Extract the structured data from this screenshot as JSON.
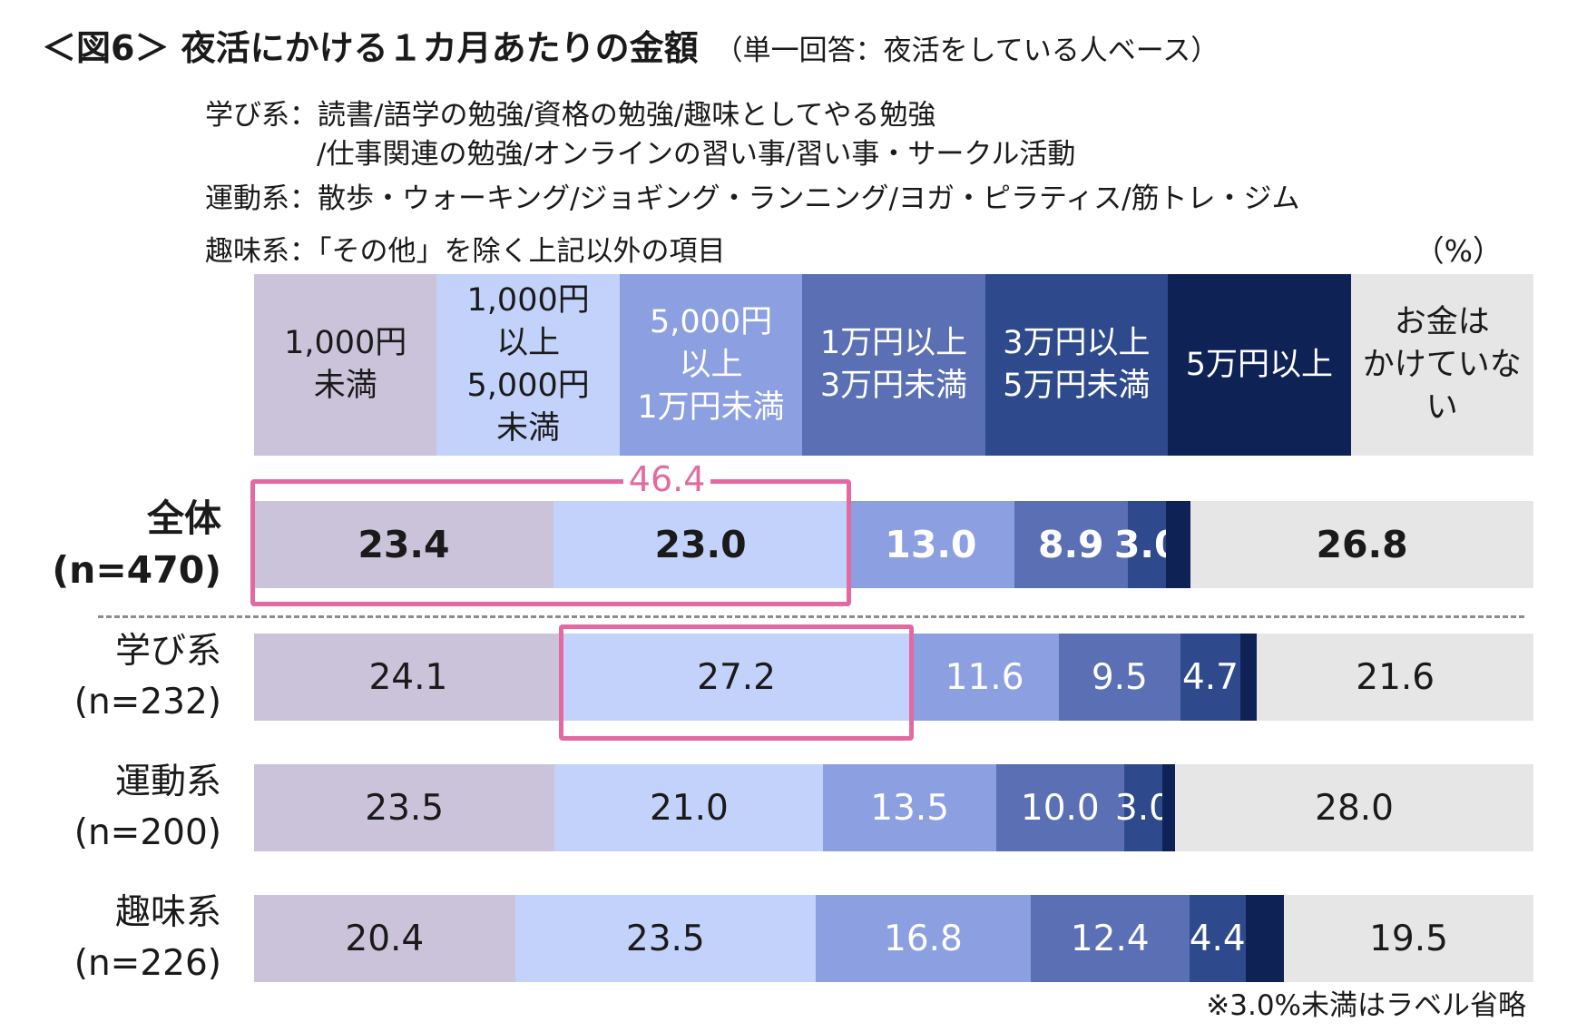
{
  "header": {
    "title": "＜図6＞ 夜活にかける１カ月あたりの金額",
    "subtitle": "（単一回答：夜活をしている人ベース）"
  },
  "definitions": [
    "学び系：読書/語学の勉強/資格の勉強/趣味としてやる勉強",
    "/仕事関連の勉強/オンラインの習い事/習い事・サークル活動",
    "運動系：散歩・ウォーキング/ジョギング・ランニング/ヨガ・ピラティス/筋トレ・ジム",
    "趣味系：「その他」を除く上記以外の項目"
  ],
  "unit": "（%）",
  "note": "※3.0%未満はラベル省略",
  "highlight_label": "46.4",
  "chart_data": {
    "type": "bar",
    "orientation": "horizontal",
    "stacked": true,
    "unit": "%",
    "xlim": [
      0,
      100
    ],
    "categories": [
      "全体\n(n=470)",
      "学び系\n(n=232)",
      "運動系\n(n=200)",
      "趣味系\n(n=226)"
    ],
    "series": [
      {
        "name": "1,000円\n未満",
        "color": "#cbc3da",
        "text_color": "#1a1a1a",
        "values": [
          23.4,
          24.1,
          23.5,
          20.4
        ]
      },
      {
        "name": "1,000円\n以上\n5,000円\n未満",
        "color": "#c3d2fa",
        "text_color": "#1a1a1a",
        "values": [
          23.0,
          27.2,
          21.0,
          23.5
        ]
      },
      {
        "name": "5,000円\n以上\n1万円未満",
        "color": "#8c9fe0",
        "text_color": "#ffffff",
        "values": [
          13.0,
          11.6,
          13.5,
          16.8
        ]
      },
      {
        "name": "1万円以上\n3万円未満",
        "color": "#5a6fb4",
        "text_color": "#ffffff",
        "values": [
          8.9,
          9.5,
          10.0,
          12.4
        ]
      },
      {
        "name": "3万円以上\n5万円未満",
        "color": "#2e4a8c",
        "text_color": "#ffffff",
        "values": [
          3.0,
          4.7,
          3.0,
          4.4
        ]
      },
      {
        "name": "5万円以上",
        "color": "#0f2256",
        "text_color": "#ffffff",
        "values": [
          null,
          null,
          null,
          null
        ]
      },
      {
        "name": "お金は\nかけていな\nい",
        "color": "#e6e6e6",
        "text_color": "#1a1a1a",
        "values": [
          26.8,
          21.6,
          28.0,
          19.5
        ]
      }
    ],
    "data_labels": [
      [
        "23.4",
        "23.0",
        "13.0",
        "8.9",
        "3.0",
        "",
        "26.8"
      ],
      [
        "24.1",
        "27.2",
        "11.6",
        "9.5",
        "4.7",
        "",
        "21.6"
      ],
      [
        "23.5",
        "21.0",
        "13.5",
        "10.0",
        "3.0",
        "",
        "28.0"
      ],
      [
        "20.4",
        "23.5",
        "16.8",
        "12.4",
        "4.4",
        "",
        "19.5"
      ]
    ],
    "highlights": [
      {
        "row": 0,
        "segments": [
          0,
          1
        ],
        "label": "46.4"
      },
      {
        "row": 1,
        "segments": [
          1
        ]
      }
    ],
    "legend": "top"
  }
}
